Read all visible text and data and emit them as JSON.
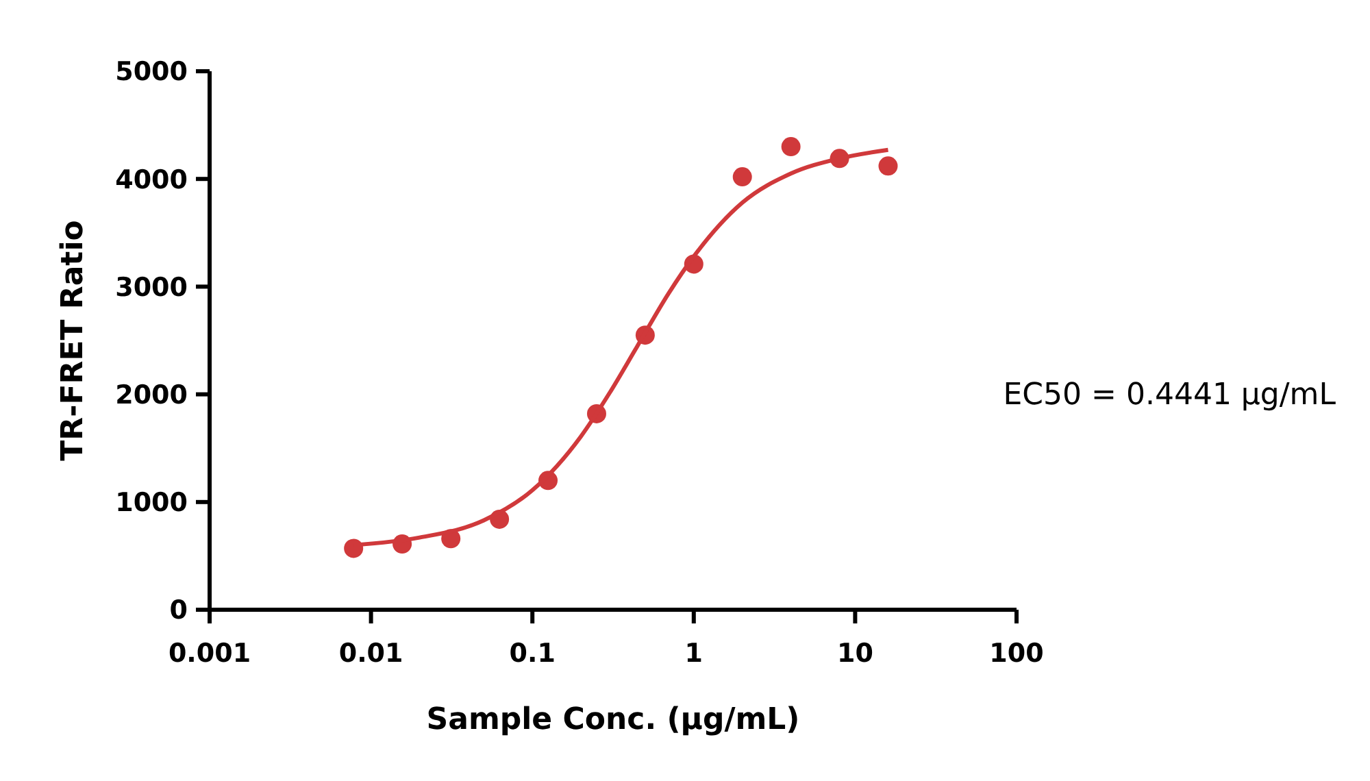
{
  "chart_data": {
    "type": "scatter",
    "xlabel": "Sample Conc. (µg/mL)",
    "ylabel": "TR-FRET Ratio",
    "log": "x",
    "xlim": [
      0.001,
      100
    ],
    "xticks": [
      0.001,
      0.01,
      0.1,
      1,
      10,
      100
    ],
    "ylim": [
      0,
      5000
    ],
    "yticks": [
      0,
      1000,
      2000,
      3000,
      4000,
      5000
    ],
    "grid": false,
    "annotations": [
      "EC50 = 0.4441 µg/mL"
    ],
    "series": [
      {
        "marker": "circle",
        "color": "#d0393b",
        "x": [
          0.0078,
          0.0156,
          0.03125,
          0.0625,
          0.125,
          0.25,
          0.5,
          1,
          2,
          4,
          8,
          16
        ],
        "values": [
          570,
          610,
          660,
          840,
          1200,
          1820,
          2550,
          3210,
          4020,
          4300,
          4190,
          4120
        ]
      },
      {
        "type": "line",
        "marker": "none",
        "line_style": "solid",
        "color": "#d0393b",
        "x": [
          0.0078,
          0.02,
          0.05,
          0.1,
          0.2,
          0.3,
          0.4441,
          0.7,
          1,
          2,
          4,
          8,
          16
        ],
        "values": [
          600,
          670,
          830,
          1110,
          1610,
          2010,
          2440,
          2940,
          3280,
          3780,
          4050,
          4190,
          4270
        ]
      }
    ]
  }
}
